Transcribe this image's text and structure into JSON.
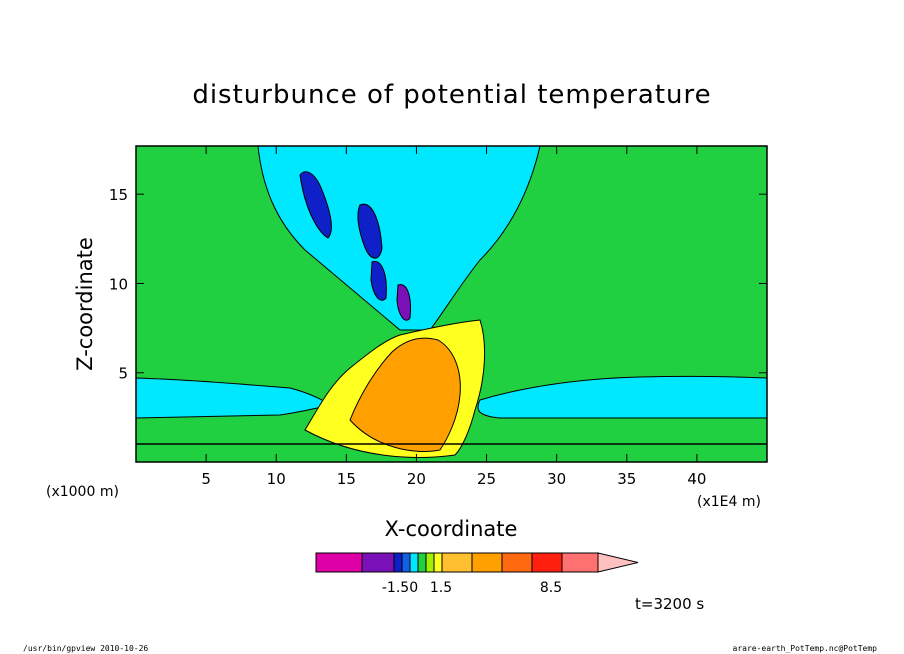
{
  "chart_data": {
    "type": "heatmap",
    "title": "disturbunce of potential temperature",
    "xlabel": "X-coordinate",
    "ylabel": "Z-coordinate",
    "x_scale_label": "(x1E4 m)",
    "y_scale_label": "(x1000 m)",
    "x_range": [
      0,
      45
    ],
    "y_range": [
      0,
      17.7
    ],
    "x_ticks": [
      5,
      10,
      15,
      20,
      25,
      30,
      35,
      40
    ],
    "y_ticks": [
      5,
      10,
      15
    ],
    "colorbar": {
      "colors": [
        "#e000a8",
        "#7a10b8",
        "#1020c8",
        "#1060e8",
        "#00e8ff",
        "#20d040",
        "#a0f000",
        "#ffff20",
        "#ffc030",
        "#ffa000",
        "#ff6a10",
        "#ff2010",
        "#ff7070",
        "#ffc0c0"
      ],
      "labels": [
        "-1.50",
        "1.5",
        "8.5"
      ]
    },
    "time_label": "t=3200 s",
    "footer_left": "/usr/bin/gpview  2010-10-26",
    "footer_right": "arare-earth_PotTemp.nc@PotTemp"
  },
  "colors": {
    "background_field": "#20d040",
    "cyan": "#00e8ff",
    "yellow": "#ffff20",
    "orange": "#ffa000",
    "blue": "#1020c8",
    "purple": "#7a10b8"
  }
}
